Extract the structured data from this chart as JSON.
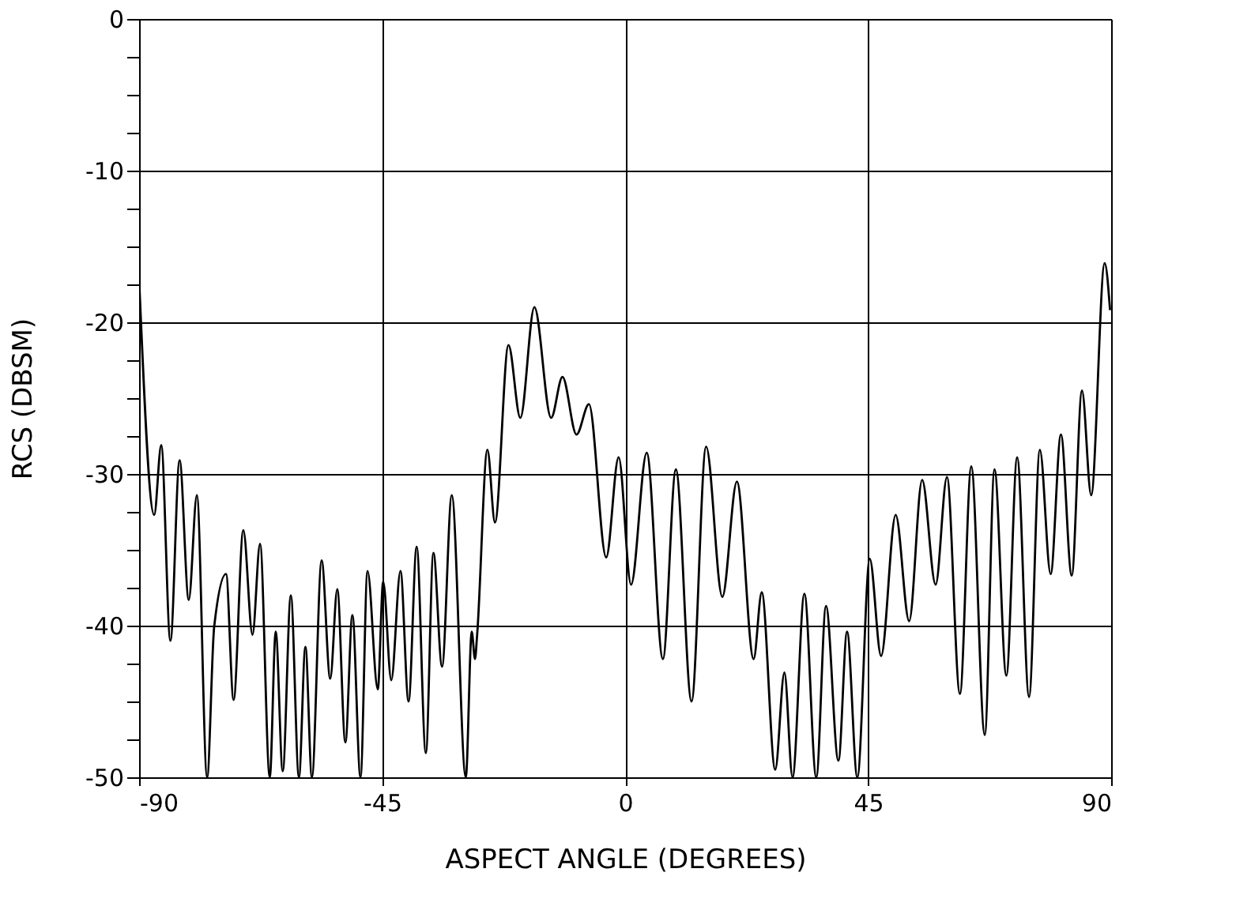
{
  "chart_data": {
    "type": "line",
    "xlabel": "ASPECT ANGLE (DEGREES)",
    "ylabel": "RCS (DBSM)",
    "xlim": [
      -90,
      90
    ],
    "xticks": [
      -90,
      -45,
      0,
      45,
      90
    ],
    "ylim": [
      -50,
      0
    ],
    "yticks": [
      0,
      {
        "value": -2.5,
        "label": null
      },
      {
        "value": -5,
        "label": null
      },
      {
        "value": -7.5,
        "label": null
      },
      -10,
      {
        "value": -12.5,
        "label": null
      },
      {
        "value": -15,
        "label": null
      },
      {
        "value": -17.5,
        "label": null
      },
      -20,
      {
        "value": -22.5,
        "label": null
      },
      {
        "value": -25,
        "label": null
      },
      {
        "value": -27.5,
        "label": null
      },
      -30,
      {
        "value": -32.5,
        "label": null
      },
      {
        "value": -35,
        "label": null
      },
      {
        "value": -37.5,
        "label": null
      },
      -40,
      {
        "value": -42.5,
        "label": null
      },
      {
        "value": -45,
        "label": null
      },
      {
        "value": -47.5,
        "label": null
      },
      -50
    ],
    "grid": true,
    "marker": "none",
    "line_style": "solid",
    "series": [
      {
        "color": "#000000",
        "x": [
          -90,
          -87.2,
          -85.9,
          -84.2,
          -82.5,
          -80.8,
          -79.3,
          -77.4,
          -76.1,
          -73.9,
          -72.5,
          -70.7,
          -69,
          -67.6,
          -65.8,
          -64.7,
          -63.4,
          -61.9,
          -60.4,
          -59.2,
          -58,
          -56.2,
          -54.6,
          -53.3,
          -51.8,
          -50.5,
          -49,
          -47.7,
          -45.8,
          -44.8,
          -43.3,
          -41.6,
          -40.1,
          -38.6,
          -36.9,
          -35.5,
          -33.9,
          -32.1,
          -29.5,
          -28.4,
          -27.8,
          -27.4,
          -25.5,
          -24.1,
          -21.6,
          -19.4,
          -16.8,
          -13.7,
          -11.6,
          -9,
          -6.7,
          -3.5,
          -1.2,
          1.1,
          4,
          7,
          9.4,
          12.3,
          15,
          18,
          20.7,
          23.8,
          25.3,
          27.8,
          29.5,
          31,
          33.2,
          35.4,
          37.2,
          39.5,
          41.1,
          43,
          45.3,
          47.4,
          50.1,
          52.6,
          55,
          57.5,
          59.6,
          62,
          64.1,
          66.6,
          68.4,
          70.6,
          72.6,
          74.8,
          76.8,
          78.8,
          80.7,
          82.7,
          84.6,
          86.3,
          88.8,
          89.8
        ],
        "values": [
          -17.1,
          -32.7,
          -28.1,
          -41,
          -29.1,
          -38.3,
          -31.4,
          -50,
          -40.1,
          -36.6,
          -44.9,
          -33.7,
          -40.6,
          -34.6,
          -50,
          -40.4,
          -49.6,
          -38,
          -50,
          -41.4,
          -50,
          -35.7,
          -43.5,
          -37.6,
          -47.7,
          -39.3,
          -50,
          -36.4,
          -44.2,
          -37.1,
          -43.6,
          -36.4,
          -45,
          -34.8,
          -48.4,
          -35.2,
          -42.7,
          -31.4,
          -50,
          -40.4,
          -42.2,
          -40.6,
          -28.4,
          -33.2,
          -21.5,
          -26.3,
          -19,
          -26.3,
          -23.6,
          -27.4,
          -25.4,
          -35.5,
          -28.9,
          -37.3,
          -28.6,
          -42.2,
          -29.7,
          -45,
          -28.2,
          -38.1,
          -30.5,
          -42.2,
          -37.8,
          -49.5,
          -43.1,
          -50,
          -37.9,
          -50,
          -38.7,
          -48.9,
          -40.4,
          -50,
          -35.6,
          -42,
          -32.7,
          -39.7,
          -30.4,
          -37.3,
          -30.2,
          -44.5,
          -29.5,
          -47.2,
          -29.7,
          -43.3,
          -28.9,
          -44.7,
          -28.4,
          -36.6,
          -27.4,
          -36.7,
          -24.5,
          -31.4,
          -16.1,
          -19.2
        ]
      }
    ]
  }
}
